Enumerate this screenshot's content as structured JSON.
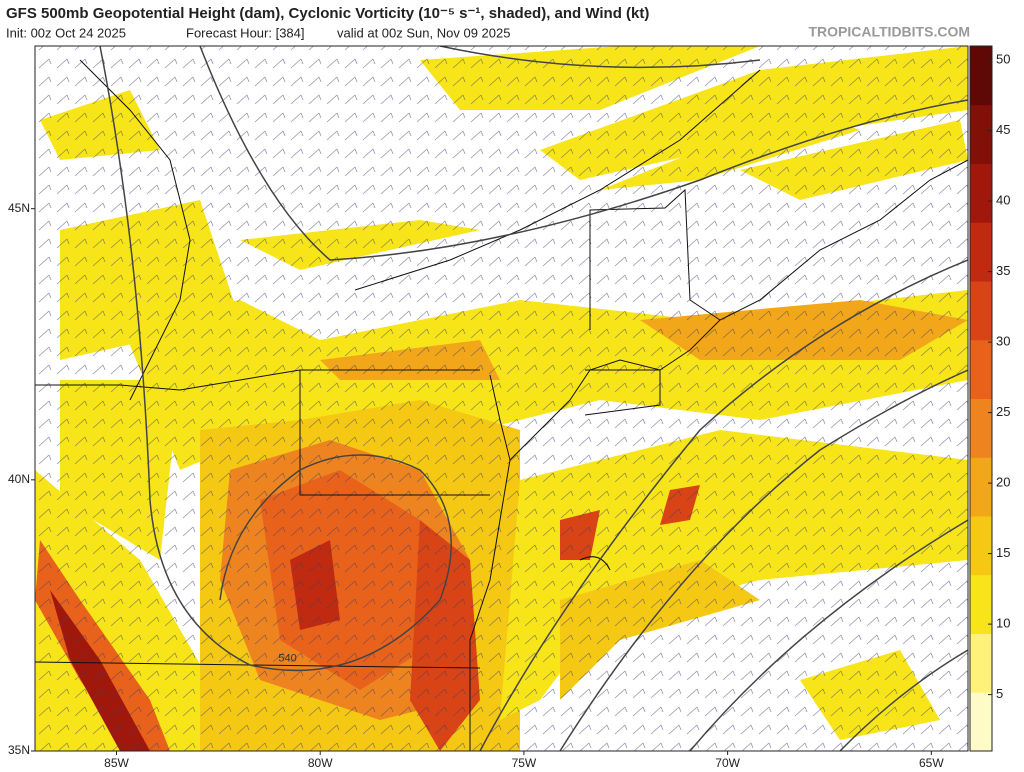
{
  "header": {
    "title": "GFS 500mb Geopotential Height (dam), Cyclonic Vorticity (10⁻⁵ s⁻¹, shaded), and Wind (kt)",
    "init": "Init: 00z Oct 24 2025",
    "forecast_hour": "Forecast Hour: [384]",
    "valid": "valid at 00z Sun, Nov 09 2025",
    "source": "TROPICALTIDBITS.COM"
  },
  "map": {
    "lon_range": [
      -87,
      -64.1
    ],
    "lat_range": [
      35,
      48
    ],
    "lon_ticks": [
      {
        "value": -85,
        "label": "85W"
      },
      {
        "value": -80,
        "label": "80W"
      },
      {
        "value": -75,
        "label": "75W"
      },
      {
        "value": -70,
        "label": "70W"
      },
      {
        "value": -65,
        "label": "65W"
      }
    ],
    "lat_ticks": [
      {
        "value": 35,
        "label": "35N"
      },
      {
        "value": 40,
        "label": "40N"
      },
      {
        "value": 45,
        "label": "45N"
      }
    ],
    "contour_labels": [
      {
        "value": 540,
        "lon": -80.8,
        "lat": 36.7
      }
    ]
  },
  "colorbar": {
    "range": [
      1,
      51
    ],
    "ticks": [
      5,
      10,
      15,
      20,
      25,
      30,
      35,
      40,
      45,
      50
    ],
    "colors": [
      "#fffbc8",
      "#fff27a",
      "#f7e51a",
      "#f5c814",
      "#f2a61a",
      "#ee8420",
      "#e8621c",
      "#d84416",
      "#c02a10",
      "#a0180c",
      "#801008",
      "#600806"
    ]
  }
}
